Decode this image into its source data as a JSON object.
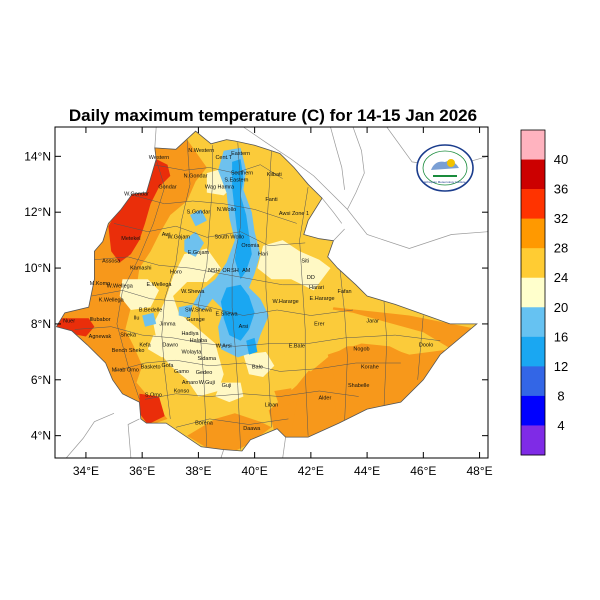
{
  "title": "Daily maximum temperature (C) for 14-15 Jan 2026",
  "x_ticks": [
    "34°E",
    "36°E",
    "38°E",
    "40°E",
    "42°E",
    "44°E",
    "46°E",
    "48°E"
  ],
  "y_ticks": [
    "14°N",
    "12°N",
    "10°N",
    "8°N",
    "6°N",
    "4°N"
  ],
  "colorbar": {
    "labels": [
      "40",
      "36",
      "32",
      "28",
      "24",
      "20",
      "16",
      "12",
      "8",
      "4"
    ],
    "colors": [
      "#ffb3bf",
      "#cc0000",
      "#ff3300",
      "#ff9900",
      "#ffcc33",
      "#ffffcc",
      "#66c2f2",
      "#1aa7f2",
      "#3366e6",
      "#0000ff",
      "#7f2be6"
    ]
  },
  "colors": {
    "hot_red": "#ea2e0a",
    "orange": "#f7981b",
    "yellow": "#fbcb3a",
    "cream": "#fff8c4",
    "light_blue": "#6ec1ee",
    "blue": "#1aa7f2",
    "mid_blue": "#3d72e3",
    "boundary": "#555555",
    "coast": "#999999"
  },
  "logo_text": "Ethiopian Meteorology Institute",
  "regions": [
    {
      "name": "Western",
      "lon": 36.6,
      "lat": 13.9
    },
    {
      "name": "N.Western",
      "lon": 38.1,
      "lat": 14.15
    },
    {
      "name": "Cent.T",
      "lon": 38.9,
      "lat": 13.9
    },
    {
      "name": "Eastern",
      "lon": 39.5,
      "lat": 14.05
    },
    {
      "name": "Southern",
      "lon": 39.55,
      "lat": 13.35
    },
    {
      "name": "S.Eastern",
      "lon": 39.35,
      "lat": 13.1
    },
    {
      "name": "N.Gondar",
      "lon": 37.9,
      "lat": 13.25
    },
    {
      "name": "Gondar",
      "lon": 36.9,
      "lat": 12.85
    },
    {
      "name": "Kilbati",
      "lon": 40.7,
      "lat": 13.3
    },
    {
      "name": "Wag Hamra",
      "lon": 38.75,
      "lat": 12.85
    },
    {
      "name": "W.Gondar",
      "lon": 35.8,
      "lat": 12.6
    },
    {
      "name": "S.Gondar",
      "lon": 38.0,
      "lat": 11.95
    },
    {
      "name": "N.Wollo",
      "lon": 39.0,
      "lat": 12.05
    },
    {
      "name": "Fanti",
      "lon": 40.6,
      "lat": 12.4
    },
    {
      "name": "Awsi Zone 1",
      "lon": 41.4,
      "lat": 11.9
    },
    {
      "name": "Metekel",
      "lon": 35.6,
      "lat": 11.0
    },
    {
      "name": "Awi",
      "lon": 36.85,
      "lat": 11.15
    },
    {
      "name": "W.Gojam",
      "lon": 37.3,
      "lat": 11.05
    },
    {
      "name": "South Wollo",
      "lon": 39.1,
      "lat": 11.05
    },
    {
      "name": "Oromia",
      "lon": 39.85,
      "lat": 10.75
    },
    {
      "name": "E.Gojam",
      "lon": 38.0,
      "lat": 10.5
    },
    {
      "name": "Hari",
      "lon": 40.3,
      "lat": 10.45
    },
    {
      "name": "Assosa",
      "lon": 34.9,
      "lat": 10.2
    },
    {
      "name": "Kamashi",
      "lon": 35.95,
      "lat": 9.95
    },
    {
      "name": "Horo",
      "lon": 37.2,
      "lat": 9.8
    },
    {
      "name": "NSH",
      "lon": 38.55,
      "lat": 9.85
    },
    {
      "name": "OR",
      "lon": 39.0,
      "lat": 9.85
    },
    {
      "name": "SH",
      "lon": 39.3,
      "lat": 9.85
    },
    {
      "name": "AM",
      "lon": 39.7,
      "lat": 9.85
    },
    {
      "name": "Siti",
      "lon": 41.8,
      "lat": 10.2
    },
    {
      "name": "M.Komo",
      "lon": 34.5,
      "lat": 9.4
    },
    {
      "name": "E.Wellega",
      "lon": 36.6,
      "lat": 9.35
    },
    {
      "name": "W.Wellega",
      "lon": 35.2,
      "lat": 9.3
    },
    {
      "name": "W.Shewa",
      "lon": 37.8,
      "lat": 9.1
    },
    {
      "name": "DD",
      "lon": 42.0,
      "lat": 9.6
    },
    {
      "name": "Fafan",
      "lon": 43.2,
      "lat": 9.1
    },
    {
      "name": "K.Wellega",
      "lon": 34.9,
      "lat": 8.8
    },
    {
      "name": "W.Hararge",
      "lon": 41.1,
      "lat": 8.75
    },
    {
      "name": "E.Hararge",
      "lon": 42.4,
      "lat": 8.85
    },
    {
      "name": "Harari",
      "lon": 42.2,
      "lat": 9.25
    },
    {
      "name": "B.Bedelle",
      "lon": 36.3,
      "lat": 8.45
    },
    {
      "name": "SW.Shewa",
      "lon": 38.0,
      "lat": 8.45
    },
    {
      "name": "Gurage",
      "lon": 37.9,
      "lat": 8.1
    },
    {
      "name": "E.Shewa",
      "lon": 39.0,
      "lat": 8.3
    },
    {
      "name": "Arsi",
      "lon": 39.6,
      "lat": 7.85
    },
    {
      "name": "Illubabor",
      "lon": 34.5,
      "lat": 8.1
    },
    {
      "name": "Ilu",
      "lon": 35.8,
      "lat": 8.15
    },
    {
      "name": "Jimma",
      "lon": 36.9,
      "lat": 7.95
    },
    {
      "name": "Erer",
      "lon": 42.3,
      "lat": 7.95
    },
    {
      "name": "Jarar",
      "lon": 44.2,
      "lat": 8.05
    },
    {
      "name": "Agnewak",
      "lon": 34.5,
      "lat": 7.5
    },
    {
      "name": "Sheka",
      "lon": 35.5,
      "lat": 7.55
    },
    {
      "name": "Kefa",
      "lon": 36.1,
      "lat": 7.2
    },
    {
      "name": "Hadiya",
      "lon": 37.7,
      "lat": 7.6
    },
    {
      "name": "Halaba",
      "lon": 38.0,
      "lat": 7.35
    },
    {
      "name": "Bench Sheko",
      "lon": 35.5,
      "lat": 7.0
    },
    {
      "name": "Dawro",
      "lon": 37.0,
      "lat": 7.2
    },
    {
      "name": "Wolayta",
      "lon": 37.75,
      "lat": 6.95
    },
    {
      "name": "W.Arsi",
      "lon": 38.9,
      "lat": 7.15
    },
    {
      "name": "E.Bale",
      "lon": 41.5,
      "lat": 7.15
    },
    {
      "name": "Nogob",
      "lon": 43.8,
      "lat": 7.05
    },
    {
      "name": "Doolo",
      "lon": 46.1,
      "lat": 7.2
    },
    {
      "name": "Sidama",
      "lon": 38.3,
      "lat": 6.7
    },
    {
      "name": "Bale",
      "lon": 40.1,
      "lat": 6.4
    },
    {
      "name": "Korahe",
      "lon": 44.1,
      "lat": 6.4
    },
    {
      "name": "Mirab Omo",
      "lon": 35.4,
      "lat": 6.3
    },
    {
      "name": "Basketo",
      "lon": 36.3,
      "lat": 6.4
    },
    {
      "name": "Gofa",
      "lon": 36.9,
      "lat": 6.45
    },
    {
      "name": "Gamo",
      "lon": 37.4,
      "lat": 6.25
    },
    {
      "name": "Gedeo",
      "lon": 38.2,
      "lat": 6.2
    },
    {
      "name": "Shabelle",
      "lon": 43.7,
      "lat": 5.75
    },
    {
      "name": "Amaro",
      "lon": 37.7,
      "lat": 5.85
    },
    {
      "name": "W.Guji",
      "lon": 38.3,
      "lat": 5.85
    },
    {
      "name": "Konso",
      "lon": 37.4,
      "lat": 5.55
    },
    {
      "name": "S.Omo",
      "lon": 36.4,
      "lat": 5.4
    },
    {
      "name": "Guji",
      "lon": 39.0,
      "lat": 5.75
    },
    {
      "name": "Liban",
      "lon": 40.6,
      "lat": 5.05
    },
    {
      "name": "Alder",
      "lon": 42.5,
      "lat": 5.3
    },
    {
      "name": "Nuer",
      "lon": 33.4,
      "lat": 8.05
    },
    {
      "name": "Borena",
      "lon": 38.2,
      "lat": 4.4
    },
    {
      "name": "Daawa",
      "lon": 39.9,
      "lat": 4.2
    }
  ]
}
